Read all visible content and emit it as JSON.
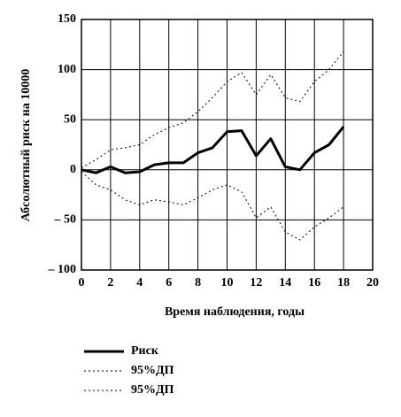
{
  "chart_data": {
    "type": "line",
    "x_label": "Время наблюдения, годы",
    "y_label": "Абсолютный риск на 10000",
    "x": [
      0,
      1,
      2,
      3,
      4,
      5,
      6,
      7,
      8,
      9,
      10,
      11,
      12,
      13,
      14,
      15,
      16,
      17,
      18
    ],
    "series": [
      {
        "name": "Риск",
        "color": "#000000",
        "line_style": "solid",
        "values": [
          0,
          -3,
          3,
          -3,
          -2,
          5,
          7,
          7,
          17,
          22,
          38,
          39,
          14,
          31,
          3,
          0,
          17,
          25,
          43
        ]
      },
      {
        "name": "95%ДП",
        "color": "#000000",
        "line_style": "dotted",
        "values": [
          2,
          10,
          20,
          22,
          25,
          35,
          42,
          47,
          58,
          72,
          88,
          97,
          75,
          95,
          72,
          68,
          88,
          100,
          118
        ]
      },
      {
        "name": "95%ДП",
        "color": "#000000",
        "line_style": "dotted",
        "values": [
          -2,
          -15,
          -20,
          -30,
          -35,
          -30,
          -32,
          -35,
          -28,
          -20,
          -15,
          -22,
          -48,
          -37,
          -62,
          -70,
          -57,
          -48,
          -37
        ]
      }
    ],
    "xlim": [
      0,
      20
    ],
    "xticks": [
      0,
      2,
      4,
      6,
      8,
      10,
      12,
      14,
      16,
      18,
      20
    ],
    "ylim": [
      -100,
      150
    ],
    "yticks": [
      {
        "value": -100,
        "label": "– 100"
      },
      {
        "value": -50,
        "label": "– 50"
      },
      0,
      50,
      100,
      150
    ],
    "grid": true
  }
}
